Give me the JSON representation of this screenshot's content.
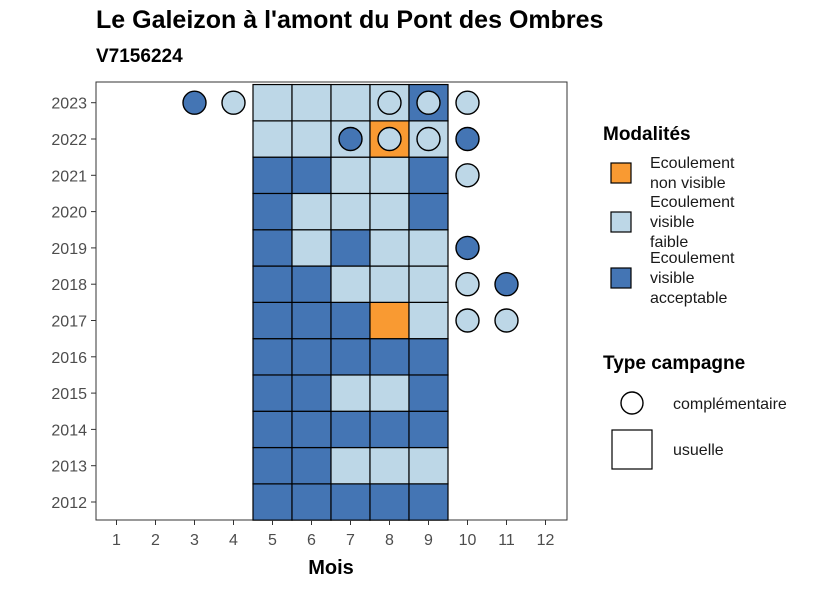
{
  "chart_data": {
    "type": "heatmap",
    "title": "Le Galeizon à l'amont du Pont des Ombres",
    "subtitle": "V7156224",
    "xlabel": "Mois",
    "ylabel": "",
    "x_ticks": [
      "1",
      "2",
      "3",
      "4",
      "5",
      "6",
      "7",
      "8",
      "9",
      "10",
      "11",
      "12"
    ],
    "y_ticks": [
      "2012",
      "2013",
      "2014",
      "2015",
      "2016",
      "2017",
      "2018",
      "2019",
      "2020",
      "2021",
      "2022",
      "2023"
    ],
    "colors": {
      "Ecoulement non visible": "#f99a32",
      "Ecoulement visible faible": "#bdd7e7",
      "Ecoulement visible acceptable": "#4475b4"
    },
    "legend": {
      "modalites_title": "Modalités",
      "modalites": [
        {
          "key": "Ecoulement non visible",
          "lines": [
            "Ecoulement",
            "non visible"
          ]
        },
        {
          "key": "Ecoulement visible faible",
          "lines": [
            "Ecoulement",
            "visible",
            "faible"
          ]
        },
        {
          "key": "Ecoulement visible acceptable",
          "lines": [
            "Ecoulement",
            "visible",
            "acceptable"
          ]
        }
      ],
      "type_title": "Type campagne",
      "types": [
        {
          "shape": "circle",
          "label": "complémentaire"
        },
        {
          "shape": "square",
          "label": "usuelle"
        }
      ]
    },
    "usuelle": [
      {
        "year": 2012,
        "months": [
          5,
          6,
          7,
          8,
          9
        ],
        "values": [
          "Ecoulement visible acceptable",
          "Ecoulement visible acceptable",
          "Ecoulement visible acceptable",
          "Ecoulement visible acceptable",
          "Ecoulement visible acceptable"
        ]
      },
      {
        "year": 2013,
        "months": [
          5,
          6,
          7,
          8,
          9
        ],
        "values": [
          "Ecoulement visible acceptable",
          "Ecoulement visible acceptable",
          "Ecoulement visible faible",
          "Ecoulement visible faible",
          "Ecoulement visible faible"
        ]
      },
      {
        "year": 2014,
        "months": [
          5,
          6,
          7,
          8,
          9
        ],
        "values": [
          "Ecoulement visible acceptable",
          "Ecoulement visible acceptable",
          "Ecoulement visible acceptable",
          "Ecoulement visible acceptable",
          "Ecoulement visible acceptable"
        ]
      },
      {
        "year": 2015,
        "months": [
          5,
          6,
          7,
          8,
          9
        ],
        "values": [
          "Ecoulement visible acceptable",
          "Ecoulement visible acceptable",
          "Ecoulement visible faible",
          "Ecoulement visible faible",
          "Ecoulement visible acceptable"
        ]
      },
      {
        "year": 2016,
        "months": [
          5,
          6,
          7,
          8,
          9
        ],
        "values": [
          "Ecoulement visible acceptable",
          "Ecoulement visible acceptable",
          "Ecoulement visible acceptable",
          "Ecoulement visible acceptable",
          "Ecoulement visible acceptable"
        ]
      },
      {
        "year": 2017,
        "months": [
          5,
          6,
          7,
          8,
          9
        ],
        "values": [
          "Ecoulement visible acceptable",
          "Ecoulement visible acceptable",
          "Ecoulement visible acceptable",
          "Ecoulement non visible",
          "Ecoulement visible faible"
        ]
      },
      {
        "year": 2018,
        "months": [
          5,
          6,
          7,
          8,
          9
        ],
        "values": [
          "Ecoulement visible acceptable",
          "Ecoulement visible acceptable",
          "Ecoulement visible faible",
          "Ecoulement visible faible",
          "Ecoulement visible faible"
        ]
      },
      {
        "year": 2019,
        "months": [
          5,
          6,
          7,
          8,
          9
        ],
        "values": [
          "Ecoulement visible acceptable",
          "Ecoulement visible faible",
          "Ecoulement visible acceptable",
          "Ecoulement visible faible",
          "Ecoulement visible faible"
        ]
      },
      {
        "year": 2020,
        "months": [
          5,
          6,
          7,
          8,
          9
        ],
        "values": [
          "Ecoulement visible acceptable",
          "Ecoulement visible faible",
          "Ecoulement visible faible",
          "Ecoulement visible faible",
          "Ecoulement visible acceptable"
        ]
      },
      {
        "year": 2021,
        "months": [
          5,
          6,
          7,
          8,
          9
        ],
        "values": [
          "Ecoulement visible acceptable",
          "Ecoulement visible acceptable",
          "Ecoulement visible faible",
          "Ecoulement visible faible",
          "Ecoulement visible acceptable"
        ]
      },
      {
        "year": 2022,
        "months": [
          5,
          6,
          7,
          8,
          9
        ],
        "values": [
          "Ecoulement visible faible",
          "Ecoulement visible faible",
          "Ecoulement visible faible",
          "Ecoulement non visible",
          "Ecoulement visible faible"
        ]
      },
      {
        "year": 2023,
        "months": [
          5,
          6,
          7,
          8,
          9
        ],
        "values": [
          "Ecoulement visible faible",
          "Ecoulement visible faible",
          "Ecoulement visible faible",
          "Ecoulement visible faible",
          "Ecoulement visible acceptable"
        ]
      }
    ],
    "complementaire": [
      {
        "year": 2023,
        "month": 3,
        "value": "Ecoulement visible acceptable"
      },
      {
        "year": 2023,
        "month": 4,
        "value": "Ecoulement visible faible"
      },
      {
        "year": 2023,
        "month": 8,
        "value": "Ecoulement visible faible"
      },
      {
        "year": 2023,
        "month": 9,
        "value": "Ecoulement visible faible"
      },
      {
        "year": 2023,
        "month": 10,
        "value": "Ecoulement visible faible"
      },
      {
        "year": 2022,
        "month": 7,
        "value": "Ecoulement visible acceptable"
      },
      {
        "year": 2022,
        "month": 8,
        "value": "Ecoulement visible faible"
      },
      {
        "year": 2022,
        "month": 9,
        "value": "Ecoulement visible faible"
      },
      {
        "year": 2022,
        "month": 10,
        "value": "Ecoulement visible acceptable"
      },
      {
        "year": 2021,
        "month": 10,
        "value": "Ecoulement visible faible"
      },
      {
        "year": 2019,
        "month": 10,
        "value": "Ecoulement visible acceptable"
      },
      {
        "year": 2018,
        "month": 10,
        "value": "Ecoulement visible faible"
      },
      {
        "year": 2018,
        "month": 11,
        "value": "Ecoulement visible acceptable"
      },
      {
        "year": 2017,
        "month": 10,
        "value": "Ecoulement visible faible"
      },
      {
        "year": 2017,
        "month": 11,
        "value": "Ecoulement visible faible"
      }
    ]
  }
}
